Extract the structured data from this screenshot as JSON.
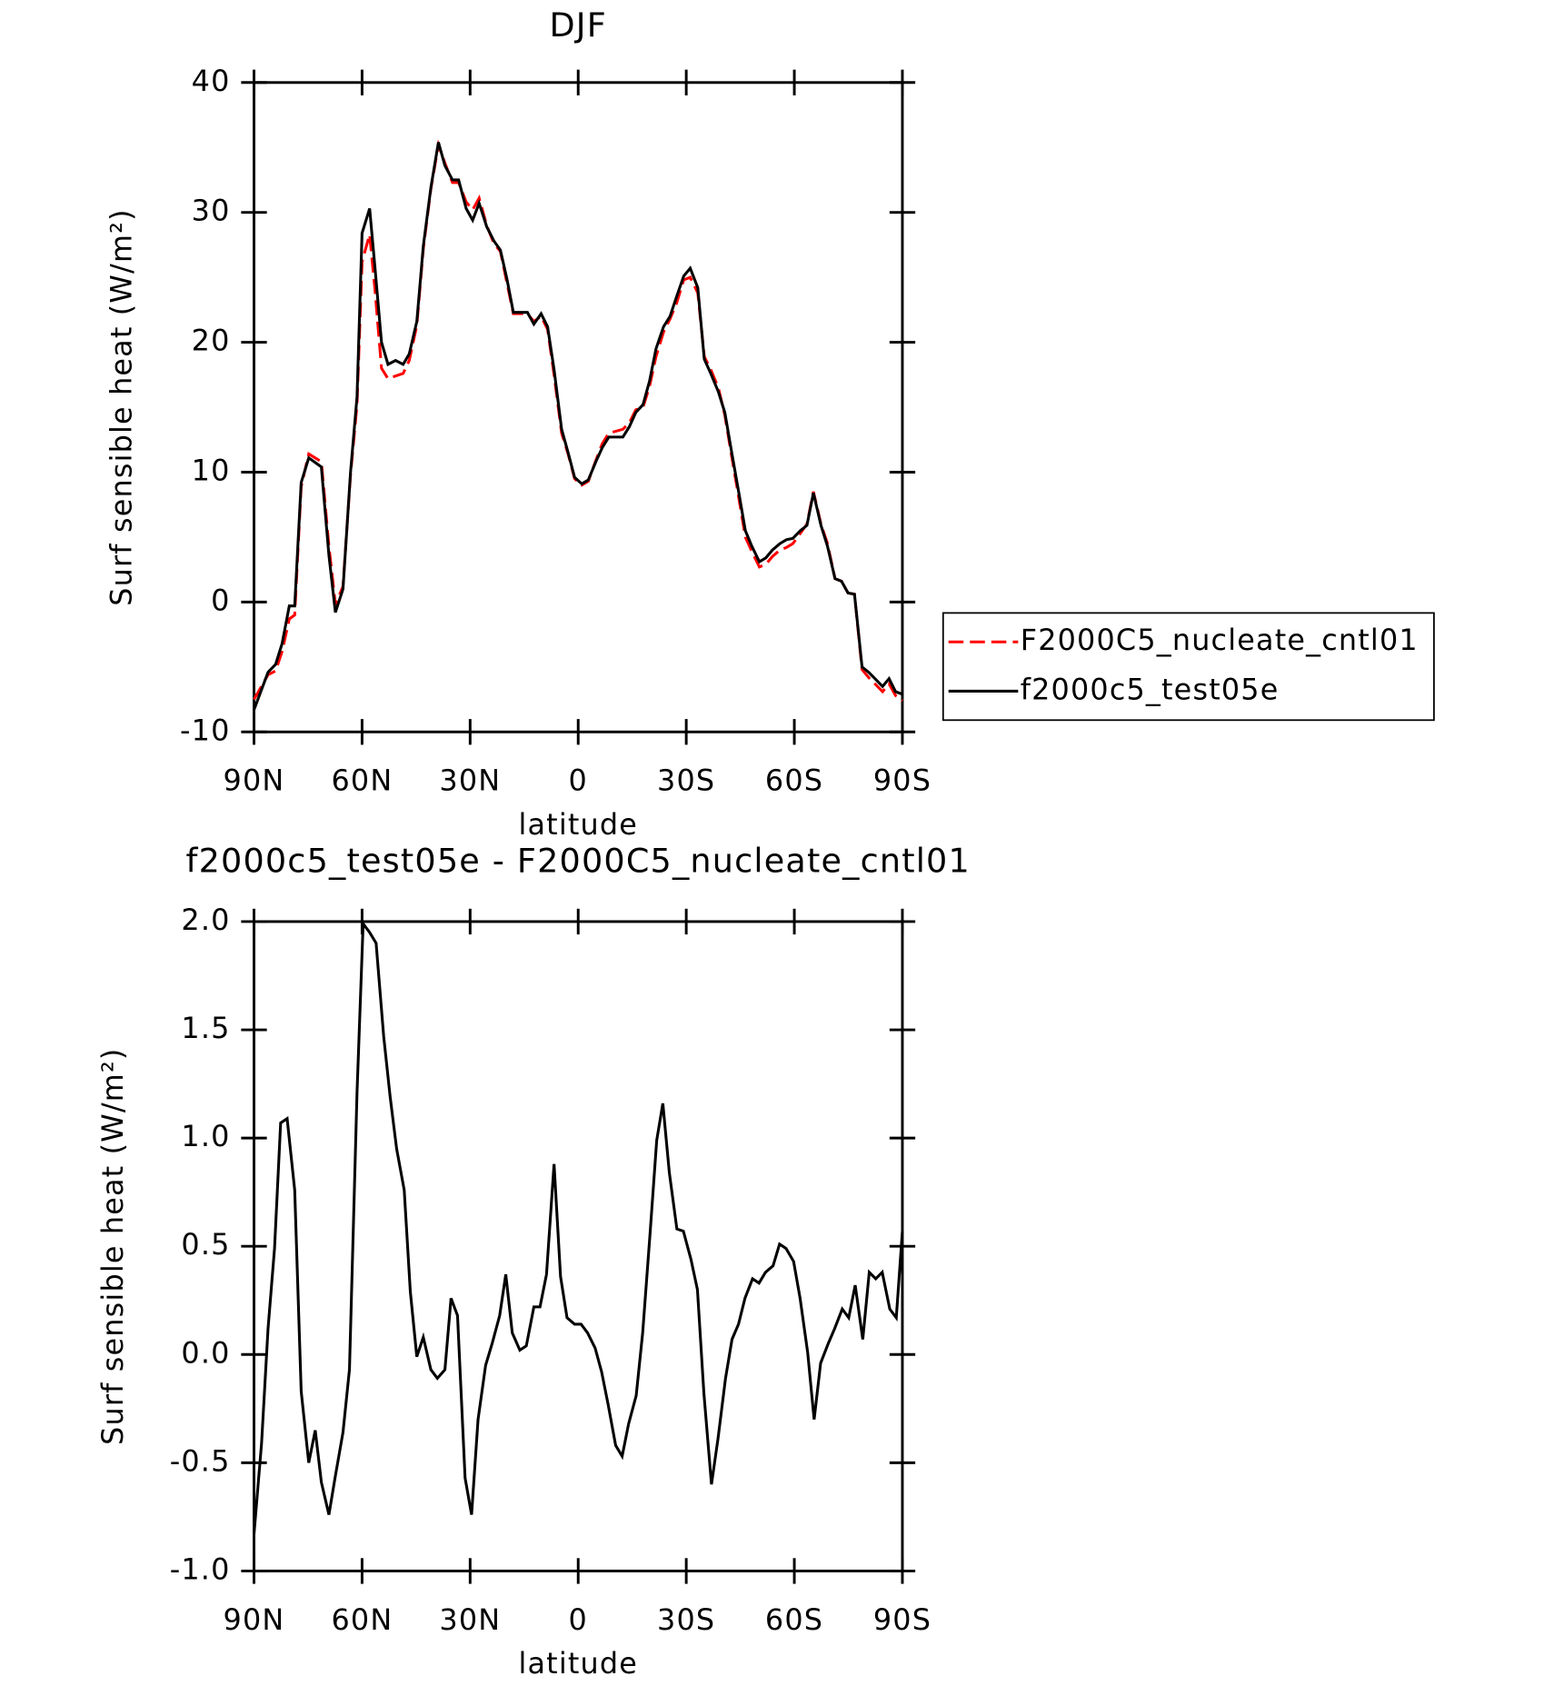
{
  "chart_data": [
    {
      "type": "line",
      "title": "DJF",
      "xlabel": "latitude",
      "ylabel": "Surf sensible heat (W/m²)",
      "xlim": [
        90,
        -90
      ],
      "xticks": [
        {
          "value": 90,
          "label": "90N"
        },
        {
          "value": 60,
          "label": "60N"
        },
        {
          "value": 30,
          "label": "30N"
        },
        0,
        {
          "value": -30,
          "label": "30S"
        },
        {
          "value": -60,
          "label": "60S"
        },
        {
          "value": -90,
          "label": "90S"
        }
      ],
      "ylim": [
        -10,
        40
      ],
      "yticks": [
        -10,
        0,
        10,
        20,
        30,
        40
      ],
      "legend": "right",
      "x": [
        90,
        86.1,
        84,
        82.2,
        80.2,
        78.7,
        76.9,
        74.8,
        71.3,
        69.2,
        67.4,
        65.3,
        63.2,
        61.4,
        60,
        57.9,
        56.4,
        54.6,
        52.8,
        50.7,
        48.6,
        46.9,
        44.8,
        43,
        40.9,
        38.8,
        37,
        34.9,
        33.2,
        31.1,
        29.3,
        27.5,
        25.4,
        23.4,
        21.6,
        19.8,
        18,
        14.1,
        12.3,
        10.3,
        8.5,
        6.7,
        4.6,
        2.8,
        1,
        -1,
        -2.8,
        -4.9,
        -6.7,
        -8.5,
        -12.4,
        -14.2,
        -16,
        -18,
        -19.8,
        -21.6,
        -23.7,
        -25.5,
        -27.3,
        -29.3,
        -31.1,
        -33.2,
        -35,
        -36.8,
        -38.9,
        -40.7,
        -42.5,
        -44.6,
        -46.4,
        -48.2,
        -50.3,
        -52.1,
        -53.9,
        -56,
        -57.8,
        -59.6,
        -61.7,
        -63.5,
        -65.3,
        -67.4,
        -69.2,
        -71.3,
        -73.1,
        -74.9,
        -76.7,
        -78.8,
        -80.6,
        -82.4,
        -84.5,
        -86.3,
        -88.1,
        -90
      ],
      "series": [
        {
          "name": "F2000C5_nucleate_cntl01",
          "color": "#ff0000",
          "line_style": "dashed",
          "values": [
            -7.5,
            -5.6,
            -5.3,
            -3.8,
            -1.3,
            -1.0,
            8.9,
            11.4,
            10.8,
            4.3,
            -0.2,
            1.2,
            9.8,
            15.2,
            26.2,
            28.3,
            24.0,
            18.0,
            17.2,
            17.4,
            17.6,
            18.6,
            21.3,
            27.2,
            31.8,
            35.2,
            33.8,
            32.3,
            32.3,
            30.8,
            30.2,
            31.1,
            29.0,
            27.6,
            27.0,
            24.6,
            22.2,
            22.2,
            21.6,
            22.0,
            21.0,
            17.5,
            13.0,
            11.4,
            9.5,
            9.0,
            9.3,
            10.9,
            12.2,
            13.0,
            13.3,
            13.8,
            14.8,
            15.0,
            16.6,
            18.9,
            20.8,
            21.8,
            23.0,
            24.8,
            25.0,
            23.8,
            18.9,
            17.9,
            16.5,
            14.4,
            11.4,
            8.0,
            5.0,
            3.9,
            2.7,
            2.9,
            3.5,
            4.0,
            4.2,
            4.5,
            5.3,
            6.0,
            8.5,
            6.0,
            4.5,
            1.8,
            1.6,
            0.7,
            0.6,
            -5.2,
            -5.8,
            -6.3,
            -6.9,
            -6.3,
            -7.2,
            -7.6
          ]
        },
        {
          "name": "f2000c5_test05e",
          "color": "#000000",
          "line_style": "solid",
          "values": [
            -8.3,
            -5.4,
            -4.8,
            -3.2,
            -0.3,
            -0.3,
            9.2,
            11.1,
            10.4,
            3.6,
            -0.8,
            1.0,
            10.0,
            15.8,
            28.4,
            30.3,
            25.7,
            20.0,
            18.3,
            18.6,
            18.3,
            19.1,
            21.6,
            27.4,
            31.9,
            35.4,
            33.6,
            32.5,
            32.5,
            30.3,
            29.4,
            30.7,
            28.9,
            27.8,
            27.1,
            24.9,
            22.3,
            22.3,
            21.4,
            22.2,
            21.2,
            17.9,
            13.3,
            11.5,
            9.6,
            9.1,
            9.4,
            10.8,
            11.9,
            12.7,
            12.7,
            13.5,
            14.6,
            15.2,
            17.0,
            19.5,
            21.2,
            22.0,
            23.5,
            25.1,
            25.7,
            24.2,
            18.7,
            17.6,
            16.2,
            14.6,
            11.7,
            8.4,
            5.5,
            4.3,
            3.1,
            3.4,
            4.0,
            4.5,
            4.8,
            4.9,
            5.5,
            5.9,
            8.4,
            5.9,
            4.3,
            1.8,
            1.6,
            0.7,
            0.6,
            -5.0,
            -5.4,
            -5.9,
            -6.5,
            -5.9,
            -6.9,
            -7.1
          ]
        }
      ]
    },
    {
      "type": "line",
      "title": "f2000c5_test05e - F2000C5_nucleate_cntl01",
      "xlabel": "latitude",
      "ylabel": "Surf sensible heat (W/m²)",
      "xlim": [
        90,
        -90
      ],
      "xticks": [
        {
          "value": 90,
          "label": "90N"
        },
        {
          "value": 60,
          "label": "60N"
        },
        {
          "value": 30,
          "label": "30N"
        },
        0,
        {
          "value": -30,
          "label": "30S"
        },
        {
          "value": -60,
          "label": "60S"
        },
        {
          "value": -90,
          "label": "90S"
        }
      ],
      "ylim": [
        -1,
        2
      ],
      "yticks": [
        {
          "value": -1,
          "label": "-1.0"
        },
        -0.5,
        {
          "value": 0,
          "label": "0.0"
        },
        0.5,
        {
          "value": 1,
          "label": "1.0"
        },
        1.5,
        {
          "value": 2,
          "label": "2.0"
        }
      ],
      "x": [
        90,
        87.9,
        86.1,
        84.3,
        82.6,
        80.8,
        78.7,
        76.9,
        74.8,
        73.0,
        71.3,
        69.2,
        67.4,
        65.3,
        63.5,
        61.4,
        59.7,
        57.9,
        56.1,
        54.0,
        52.2,
        50.4,
        48.3,
        46.6,
        44.8,
        43.0,
        40.9,
        39.1,
        37.0,
        35.3,
        33.5,
        31.4,
        29.6,
        27.8,
        25.7,
        23.9,
        21.8,
        20.1,
        18.3,
        16.2,
        14.4,
        12.3,
        10.6,
        8.8,
        6.7,
        4.9,
        3.1,
        1.0,
        -0.8,
        -2.6,
        -4.7,
        -6.5,
        -8.3,
        -10.4,
        -12.2,
        -14.0,
        -16.1,
        -17.9,
        -20.0,
        -21.8,
        -23.5,
        -25.3,
        -27.4,
        -29.2,
        -31.3,
        -33.1,
        -34.9,
        -37.0,
        -38.8,
        -40.9,
        -42.7,
        -44.5,
        -46.3,
        -48.4,
        -50.2,
        -52.0,
        -54.1,
        -55.9,
        -57.7,
        -59.8,
        -61.6,
        -63.7,
        -65.5,
        -67.3,
        -69.4,
        -71.2,
        -73.3,
        -75.1,
        -76.9,
        -79.0,
        -80.8,
        -82.6,
        -84.4,
        -86.5,
        -88.3,
        -90
      ],
      "series": [
        {
          "color": "#000000",
          "line_style": "solid",
          "values": [
            -0.83,
            -0.41,
            0.12,
            0.49,
            1.07,
            1.09,
            0.76,
            -0.17,
            -0.5,
            -0.35,
            -0.59,
            -0.74,
            -0.56,
            -0.36,
            -0.07,
            1.21,
            1.99,
            1.95,
            1.9,
            1.47,
            1.19,
            0.95,
            0.76,
            0.29,
            -0.01,
            0.08,
            -0.07,
            -0.11,
            -0.07,
            0.26,
            0.18,
            -0.57,
            -0.74,
            -0.3,
            -0.05,
            0.05,
            0.18,
            0.37,
            0.1,
            0.02,
            0.04,
            0.22,
            0.22,
            0.37,
            0.88,
            0.36,
            0.17,
            0.14,
            0.14,
            0.1,
            0.03,
            -0.08,
            -0.23,
            -0.42,
            -0.47,
            -0.32,
            -0.19,
            0.1,
            0.57,
            0.99,
            1.16,
            0.84,
            0.58,
            0.57,
            0.44,
            0.3,
            -0.18,
            -0.6,
            -0.39,
            -0.11,
            0.07,
            0.14,
            0.26,
            0.35,
            0.33,
            0.38,
            0.41,
            0.51,
            0.49,
            0.43,
            0.26,
            0.01,
            -0.3,
            -0.04,
            0.05,
            0.12,
            0.21,
            0.17,
            0.32,
            0.07,
            0.38,
            0.35,
            0.38,
            0.21,
            0.17,
            0.57
          ]
        }
      ]
    }
  ]
}
